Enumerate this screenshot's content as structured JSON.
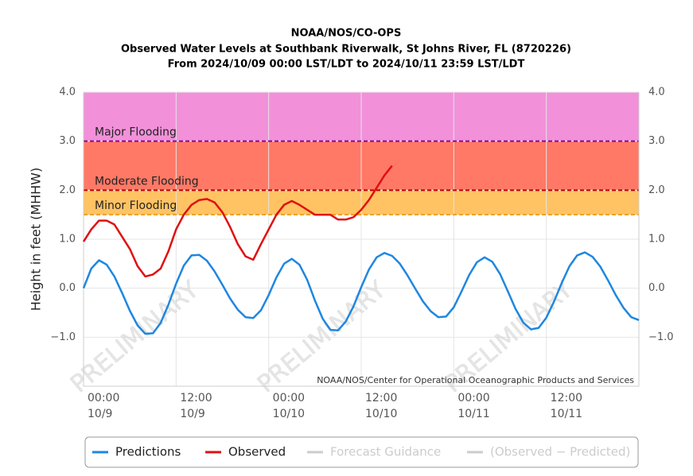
{
  "chart_data": {
    "type": "line",
    "title": "NOAA/NOS/CO-OPS",
    "subtitle": "Observed Water Levels at Southbank Riverwalk, St Johns River, FL (8720226)",
    "subtitle2": "From 2024/10/09 00:00 LST/LDT to 2024/10/11 23:59 LST/LDT",
    "ylabel": "Height in feet (MHHW)",
    "credit": "NOAA/NOS/Center for Operational Oceanographic Products and Services",
    "watermark": "PRELIMINARY",
    "xlim": [
      "2024-10-09 00:00",
      "2024-10-12 00:00"
    ],
    "xticks": [
      {
        "value": "2024-10-09 00:00",
        "label": [
          "00:00",
          "10/9"
        ]
      },
      {
        "value": "2024-10-09 12:00",
        "label": [
          "12:00",
          "10/9"
        ]
      },
      {
        "value": "2024-10-10 00:00",
        "label": [
          "00:00",
          "10/10"
        ]
      },
      {
        "value": "2024-10-10 12:00",
        "label": [
          "12:00",
          "10/10"
        ]
      },
      {
        "value": "2024-10-11 00:00",
        "label": [
          "00:00",
          "10/11"
        ]
      },
      {
        "value": "2024-10-11 12:00",
        "label": [
          "12:00",
          "10/11"
        ]
      }
    ],
    "ylim": [
      -2,
      4
    ],
    "yticks": [
      {
        "value": 4,
        "label": "4.0"
      },
      {
        "value": 3,
        "label": "3.0"
      },
      {
        "value": 2,
        "label": "2.0"
      },
      {
        "value": 1,
        "label": "1.0"
      },
      {
        "value": 0,
        "label": "0.0"
      },
      {
        "value": -1,
        "label": "−1.0"
      }
    ],
    "y2lim": [
      -2,
      4
    ],
    "y2ticks": [
      {
        "value": 4,
        "label": "4.0"
      },
      {
        "value": 3,
        "label": "3.0"
      },
      {
        "value": 2,
        "label": "2.0"
      },
      {
        "value": 1,
        "label": "1.0"
      },
      {
        "value": 0,
        "label": "0.0"
      },
      {
        "value": -1,
        "label": "−1.0"
      }
    ],
    "grid": true,
    "thresholds": [
      {
        "label": "Major Flooding",
        "value": 3,
        "color": "#f291da",
        "line_color": "#8b0a8b"
      },
      {
        "label": "Moderate Flooding",
        "value": 2,
        "color": "#ff7966",
        "line_color": "#c00000"
      },
      {
        "label": "Minor Flooding",
        "value": 1.5,
        "color": "#ffc363",
        "line_color": "#f0a020"
      }
    ],
    "x": [
      "2024-10-09 00:00",
      "2024-10-09 01:00",
      "2024-10-09 02:00",
      "2024-10-09 03:00",
      "2024-10-09 04:00",
      "2024-10-09 05:00",
      "2024-10-09 06:00",
      "2024-10-09 07:00",
      "2024-10-09 08:00",
      "2024-10-09 09:00",
      "2024-10-09 10:00",
      "2024-10-09 11:00",
      "2024-10-09 12:00",
      "2024-10-09 13:00",
      "2024-10-09 14:00",
      "2024-10-09 15:00",
      "2024-10-09 16:00",
      "2024-10-09 17:00",
      "2024-10-09 18:00",
      "2024-10-09 19:00",
      "2024-10-09 20:00",
      "2024-10-09 21:00",
      "2024-10-09 22:00",
      "2024-10-09 23:00",
      "2024-10-10 00:00",
      "2024-10-10 01:00",
      "2024-10-10 02:00",
      "2024-10-10 03:00",
      "2024-10-10 04:00",
      "2024-10-10 05:00",
      "2024-10-10 06:00",
      "2024-10-10 07:00",
      "2024-10-10 08:00",
      "2024-10-10 09:00",
      "2024-10-10 10:00",
      "2024-10-10 11:00",
      "2024-10-10 12:00",
      "2024-10-10 13:00",
      "2024-10-10 14:00",
      "2024-10-10 15:00",
      "2024-10-10 16:00",
      "2024-10-10 17:00",
      "2024-10-10 18:00",
      "2024-10-10 19:00",
      "2024-10-10 20:00",
      "2024-10-10 21:00",
      "2024-10-10 22:00",
      "2024-10-10 23:00",
      "2024-10-11 00:00",
      "2024-10-11 01:00",
      "2024-10-11 02:00",
      "2024-10-11 03:00",
      "2024-10-11 04:00",
      "2024-10-11 05:00",
      "2024-10-11 06:00",
      "2024-10-11 07:00",
      "2024-10-11 08:00",
      "2024-10-11 09:00",
      "2024-10-11 10:00",
      "2024-10-11 11:00",
      "2024-10-11 12:00",
      "2024-10-11 13:00",
      "2024-10-11 14:00",
      "2024-10-11 15:00",
      "2024-10-11 16:00",
      "2024-10-11 17:00",
      "2024-10-11 18:00",
      "2024-10-11 19:00",
      "2024-10-11 20:00",
      "2024-10-11 21:00",
      "2024-10-11 22:00",
      "2024-10-11 23:00",
      "2024-10-12 00:00"
    ],
    "series": [
      {
        "name": "Predictions",
        "color": "#1f87e0",
        "values": [
          0.0,
          0.4,
          0.57,
          0.48,
          0.24,
          -0.1,
          -0.46,
          -0.76,
          -0.93,
          -0.92,
          -0.71,
          -0.34,
          0.09,
          0.46,
          0.67,
          0.68,
          0.56,
          0.34,
          0.07,
          -0.21,
          -0.44,
          -0.59,
          -0.61,
          -0.45,
          -0.14,
          0.22,
          0.5,
          0.6,
          0.48,
          0.17,
          -0.25,
          -0.62,
          -0.85,
          -0.86,
          -0.68,
          -0.37,
          0.02,
          0.38,
          0.63,
          0.72,
          0.66,
          0.5,
          0.26,
          -0.01,
          -0.27,
          -0.47,
          -0.59,
          -0.58,
          -0.39,
          -0.07,
          0.27,
          0.53,
          0.63,
          0.54,
          0.29,
          -0.06,
          -0.42,
          -0.7,
          -0.84,
          -0.81,
          -0.6,
          -0.27,
          0.11,
          0.45,
          0.67,
          0.73,
          0.64,
          0.44,
          0.16,
          -0.14,
          -0.4,
          -0.59,
          -0.65
        ]
      },
      {
        "name": "Observed",
        "color": "#e01010",
        "values": [
          0.95,
          1.2,
          1.38,
          1.38,
          1.3,
          1.05,
          0.8,
          0.45,
          0.24,
          0.28,
          0.4,
          0.75,
          1.2,
          1.5,
          1.7,
          1.8,
          1.82,
          1.75,
          1.55,
          1.25,
          0.9,
          0.65,
          0.58,
          0.9,
          1.2,
          1.5,
          1.7,
          1.78,
          1.7,
          1.6,
          1.5,
          1.5,
          1.5,
          1.4,
          1.4,
          1.45,
          1.6,
          1.8,
          2.05,
          2.3,
          2.5,
          null,
          null,
          null,
          null,
          null,
          null,
          null,
          null,
          null,
          null,
          null,
          null,
          null,
          null,
          null,
          null,
          null,
          null,
          null,
          null,
          null,
          null,
          null,
          null,
          null,
          null,
          null,
          null,
          null,
          null,
          null,
          null
        ]
      }
    ],
    "inactive_series": [
      {
        "name": "Forecast Guidance",
        "color": "#cccccc"
      },
      {
        "name": "(Observed − Predicted)",
        "color": "#cccccc"
      }
    ]
  }
}
